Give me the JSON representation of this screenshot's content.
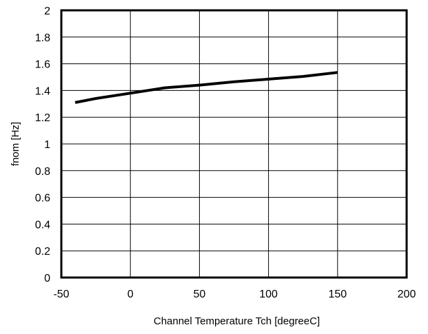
{
  "chart_data": {
    "type": "line",
    "title": "",
    "xlabel": "Channel Temperature   Tch [degreeC]",
    "ylabel": "fnom [Hz]",
    "xlim": [
      -50,
      200
    ],
    "ylim": [
      0,
      2
    ],
    "x_ticks": [
      -50,
      0,
      50,
      100,
      150,
      200
    ],
    "y_ticks": [
      0,
      0.2,
      0.4,
      0.6,
      0.8,
      1,
      1.2,
      1.4,
      1.6,
      1.8,
      2
    ],
    "x_tick_labels": [
      "-50",
      "0",
      "50",
      "100",
      "150",
      "200"
    ],
    "y_tick_labels": [
      "0",
      "0.2",
      "0.4",
      "0.6",
      "0.8",
      "1",
      "1.2",
      "1.4",
      "1.6",
      "1.8",
      "2"
    ],
    "grid": true,
    "legend": "none",
    "series": [
      {
        "color": "#000000",
        "x": [
          -40,
          -25,
          0,
          25,
          50,
          75,
          100,
          125,
          150
        ],
        "y": [
          1.31,
          1.34,
          1.38,
          1.42,
          1.44,
          1.465,
          1.485,
          1.505,
          1.535
        ]
      }
    ]
  }
}
